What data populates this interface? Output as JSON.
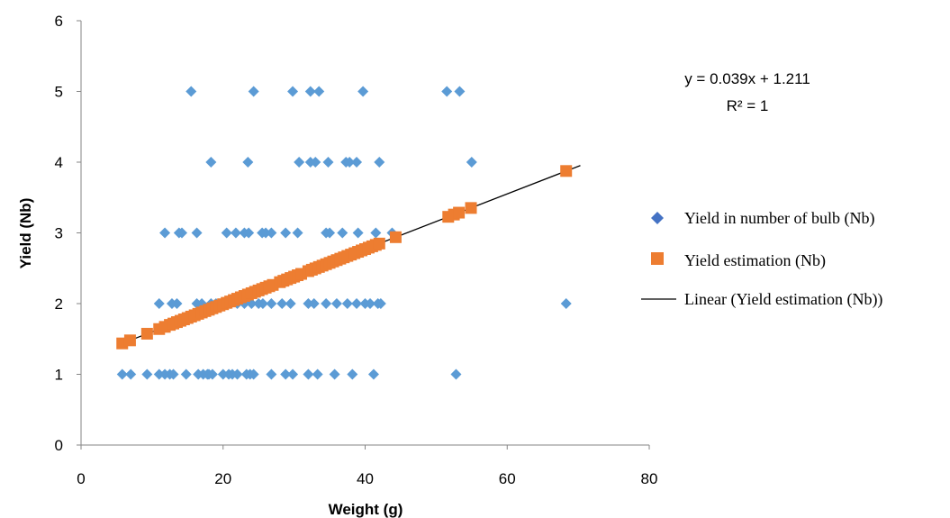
{
  "chart_data": {
    "type": "scatter",
    "xlabel": "Weight (g)",
    "ylabel": "Yield (Nb)",
    "xlim": [
      0,
      80
    ],
    "ylim": [
      0,
      6
    ],
    "xticks": [
      "0",
      "20",
      "40",
      "60",
      "80"
    ],
    "yticks": [
      "0",
      "1",
      "2",
      "3",
      "4",
      "5",
      "6"
    ],
    "grid": false,
    "legend_position": "right",
    "annotation": {
      "equation": "y = 0.039x + 1.211",
      "r_squared": "R² = 1"
    },
    "series": [
      {
        "name": "Yield in number of bulb (Nb)",
        "marker": "diamond",
        "color": "#5B9BD5",
        "points": [
          [
            5.8,
            1
          ],
          [
            7,
            1
          ],
          [
            9.3,
            1
          ],
          [
            11,
            1
          ],
          [
            11.8,
            1
          ],
          [
            12.5,
            1
          ],
          [
            13,
            1
          ],
          [
            14.8,
            1
          ],
          [
            16.5,
            1
          ],
          [
            17.2,
            1
          ],
          [
            17.8,
            1
          ],
          [
            18,
            1
          ],
          [
            18.5,
            1
          ],
          [
            20,
            1
          ],
          [
            20.8,
            1
          ],
          [
            21.3,
            1
          ],
          [
            22,
            1
          ],
          [
            23.3,
            1
          ],
          [
            23.8,
            1
          ],
          [
            24.3,
            1
          ],
          [
            26.8,
            1
          ],
          [
            28.8,
            1
          ],
          [
            29.8,
            1
          ],
          [
            32,
            1
          ],
          [
            33.3,
            1
          ],
          [
            35.7,
            1
          ],
          [
            38.2,
            1
          ],
          [
            41.2,
            1
          ],
          [
            52.8,
            1
          ],
          [
            11,
            2
          ],
          [
            12.8,
            2
          ],
          [
            13.5,
            2
          ],
          [
            16.3,
            2
          ],
          [
            17,
            2
          ],
          [
            18.3,
            2
          ],
          [
            19,
            2
          ],
          [
            20.3,
            2
          ],
          [
            21,
            2
          ],
          [
            22,
            2
          ],
          [
            23,
            2
          ],
          [
            24,
            2
          ],
          [
            25,
            2
          ],
          [
            25.6,
            2
          ],
          [
            26.8,
            2
          ],
          [
            28.3,
            2
          ],
          [
            29.5,
            2
          ],
          [
            32,
            2
          ],
          [
            32.8,
            2
          ],
          [
            34.5,
            2
          ],
          [
            36,
            2
          ],
          [
            37.5,
            2
          ],
          [
            38.8,
            2
          ],
          [
            40,
            2
          ],
          [
            40.7,
            2
          ],
          [
            41.8,
            2
          ],
          [
            42.2,
            2
          ],
          [
            68.3,
            2
          ],
          [
            11.8,
            3
          ],
          [
            13.8,
            3
          ],
          [
            14.2,
            3
          ],
          [
            16.3,
            3
          ],
          [
            20.5,
            3
          ],
          [
            21.8,
            3
          ],
          [
            23,
            3
          ],
          [
            23.6,
            3
          ],
          [
            25.5,
            3
          ],
          [
            26,
            3
          ],
          [
            26.8,
            3
          ],
          [
            28.8,
            3
          ],
          [
            30.5,
            3
          ],
          [
            34.5,
            3
          ],
          [
            35,
            3
          ],
          [
            36.8,
            3
          ],
          [
            39,
            3
          ],
          [
            41.5,
            3
          ],
          [
            43.8,
            3
          ],
          [
            18.3,
            4
          ],
          [
            23.5,
            4
          ],
          [
            30.7,
            4
          ],
          [
            32.3,
            4
          ],
          [
            33,
            4
          ],
          [
            34.8,
            4
          ],
          [
            37.3,
            4
          ],
          [
            37.8,
            4
          ],
          [
            38.8,
            4
          ],
          [
            42,
            4
          ],
          [
            55,
            4
          ],
          [
            15.5,
            5
          ],
          [
            24.3,
            5
          ],
          [
            29.8,
            5
          ],
          [
            32.3,
            5
          ],
          [
            33.5,
            5
          ],
          [
            39.7,
            5
          ],
          [
            51.5,
            5
          ],
          [
            53.3,
            5
          ]
        ]
      },
      {
        "name": "Yield estimation (Nb)",
        "marker": "square",
        "color": "#ED7D31",
        "points": [
          [
            5.8,
            1.437
          ],
          [
            6.9,
            1.48
          ],
          [
            9.3,
            1.574
          ],
          [
            11,
            1.64
          ],
          [
            11.8,
            1.671
          ],
          [
            12.5,
            1.699
          ],
          [
            13,
            1.718
          ],
          [
            13.5,
            1.738
          ],
          [
            14,
            1.757
          ],
          [
            14.5,
            1.777
          ],
          [
            15,
            1.796
          ],
          [
            15.5,
            1.816
          ],
          [
            16,
            1.835
          ],
          [
            16.5,
            1.855
          ],
          [
            17,
            1.874
          ],
          [
            17.5,
            1.894
          ],
          [
            18,
            1.913
          ],
          [
            18.5,
            1.933
          ],
          [
            19,
            1.952
          ],
          [
            19.5,
            1.972
          ],
          [
            20,
            1.991
          ],
          [
            20.5,
            2.011
          ],
          [
            21,
            2.03
          ],
          [
            21.5,
            2.05
          ],
          [
            22,
            2.069
          ],
          [
            22.5,
            2.089
          ],
          [
            23,
            2.108
          ],
          [
            23.5,
            2.128
          ],
          [
            24,
            2.147
          ],
          [
            24.5,
            2.167
          ],
          [
            25,
            2.186
          ],
          [
            25.5,
            2.206
          ],
          [
            26,
            2.225
          ],
          [
            26.5,
            2.245
          ],
          [
            27,
            2.264
          ],
          [
            28,
            2.303
          ],
          [
            28.5,
            2.323
          ],
          [
            29,
            2.342
          ],
          [
            29.5,
            2.362
          ],
          [
            30,
            2.381
          ],
          [
            30.5,
            2.401
          ],
          [
            31,
            2.42
          ],
          [
            32,
            2.459
          ],
          [
            32.5,
            2.479
          ],
          [
            33,
            2.498
          ],
          [
            33.5,
            2.518
          ],
          [
            34,
            2.537
          ],
          [
            34.5,
            2.557
          ],
          [
            35,
            2.576
          ],
          [
            35.5,
            2.596
          ],
          [
            36,
            2.615
          ],
          [
            36.5,
            2.635
          ],
          [
            37,
            2.654
          ],
          [
            37.5,
            2.674
          ],
          [
            38,
            2.693
          ],
          [
            38.5,
            2.713
          ],
          [
            39,
            2.732
          ],
          [
            39.5,
            2.752
          ],
          [
            40,
            2.771
          ],
          [
            40.5,
            2.791
          ],
          [
            41,
            2.81
          ],
          [
            41.5,
            2.83
          ],
          [
            42,
            2.849
          ],
          [
            44.3,
            2.939
          ],
          [
            51.7,
            3.227
          ],
          [
            52.5,
            3.259
          ],
          [
            53.2,
            3.286
          ],
          [
            54.9,
            3.352
          ],
          [
            68.3,
            3.875
          ]
        ]
      },
      {
        "name": "Linear (Yield estimation (Nb))",
        "marker": "line",
        "color": "#000000",
        "x_range": [
          5.8,
          70.3
        ],
        "slope": 0.039,
        "intercept": 1.211
      }
    ]
  }
}
